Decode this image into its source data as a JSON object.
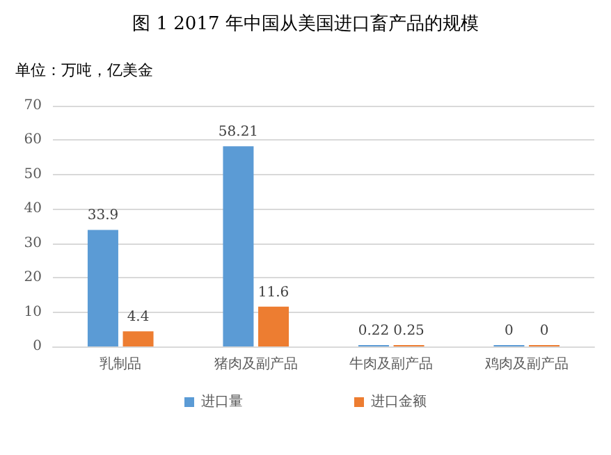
{
  "chart_data": {
    "type": "bar",
    "title": "图 1 2017 年中国从美国进口畜产品的规模",
    "subtitle": "单位：万吨，亿美金",
    "categories": [
      "乳制品",
      "猪肉及副产品",
      "牛肉及副产品",
      "鸡肉及副产品"
    ],
    "series": [
      {
        "name": "进口量",
        "color": "#5b9bd5",
        "values": [
          33.9,
          58.21,
          0.22,
          0
        ]
      },
      {
        "name": "进口金额",
        "color": "#ed7d31",
        "values": [
          4.4,
          11.6,
          0.25,
          0
        ]
      }
    ],
    "ylim": [
      0,
      70
    ],
    "yticks": [
      0,
      10,
      20,
      30,
      40,
      50,
      60,
      70
    ],
    "grid": "y",
    "legend": "bottom",
    "data_labels": true
  }
}
